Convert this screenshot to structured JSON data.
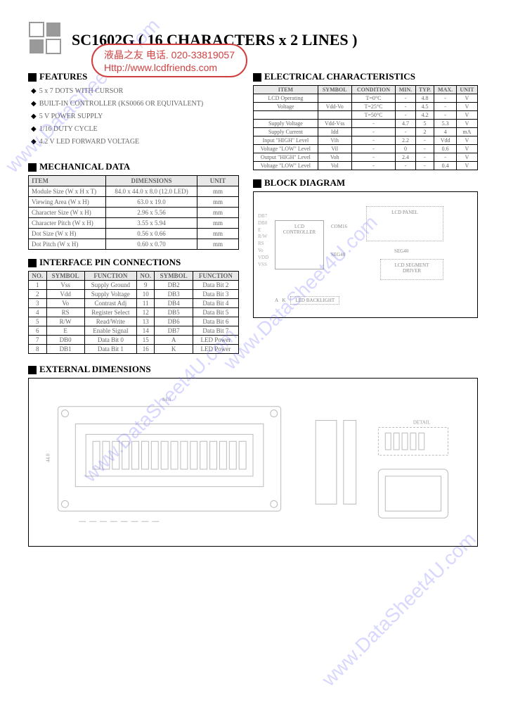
{
  "title": "SC1602G ( 16 CHARACTERS x 2 LINES )",
  "watermark_box": {
    "line1": "液晶之友   电话. 020-33819057",
    "line2": "Http://www.lcdfriends.com"
  },
  "watermark_diag": "www.DataSheet4U.com",
  "sections": {
    "features": "FEATURES",
    "electrical": "ELECTRICAL CHARACTERISTICS",
    "mechanical": "MECHANICAL DATA",
    "pins": "INTERFACE PIN CONNECTIONS",
    "block": "BLOCK DIAGRAM",
    "external": "EXTERNAL DIMENSIONS"
  },
  "features": [
    "5 x 7 DOTS WITH CURSOR",
    "BUILT-IN CONTROLLER (KS0066 OR EQUIVALENT)",
    "5 V POWER SUPPLY",
    "1/16 DUTY CYCLE",
    "4.2 V LED FORWARD VOLTAGE"
  ],
  "mechanical": {
    "headers": [
      "ITEM",
      "DIMENSIONS",
      "UNIT"
    ],
    "rows": [
      [
        "Module Size (W x H x T)",
        "84.0 x 44.0 x 8.0 (12.0 LED)",
        "mm"
      ],
      [
        "Viewing Area (W x H)",
        "63.0 x 19.0",
        "mm"
      ],
      [
        "Character Size (W x H)",
        "2.96 x 5.56",
        "mm"
      ],
      [
        "Character Pitch (W x H)",
        "3.55 x 5.94",
        "mm"
      ],
      [
        "Dot Size (W x H)",
        "0.56 x 0.66",
        "mm"
      ],
      [
        "Dot Pitch (W x H)",
        "0.60 x 0.70",
        "mm"
      ]
    ]
  },
  "pins": {
    "headers": [
      "NO.",
      "SYMBOL",
      "FUNCTION",
      "NO.",
      "SYMBOL",
      "FUNCTION"
    ],
    "rows": [
      [
        "1",
        "Vss",
        "Supply Ground",
        "9",
        "DB2",
        "Data Bit 2"
      ],
      [
        "2",
        "Vdd",
        "Supply Voltage",
        "10",
        "DB3",
        "Data Bit 3"
      ],
      [
        "3",
        "Vo",
        "Contrast Adj",
        "11",
        "DB4",
        "Data Bit 4"
      ],
      [
        "4",
        "RS",
        "Register Select",
        "12",
        "DB5",
        "Data Bit 5"
      ],
      [
        "5",
        "R/W",
        "Read/Write",
        "13",
        "DB6",
        "Data Bit 6"
      ],
      [
        "6",
        "E",
        "Enable Signal",
        "14",
        "DB7",
        "Data Bit 7"
      ],
      [
        "7",
        "DB0",
        "Data Bit 0",
        "15",
        "A",
        "LED Power"
      ],
      [
        "8",
        "DB1",
        "Data Bit 1",
        "16",
        "K",
        "LED Power"
      ]
    ]
  },
  "electrical": {
    "headers": [
      "ITEM",
      "SYMBOL",
      "CONDITION",
      "MIN.",
      "TYP.",
      "MAX.",
      "UNIT"
    ],
    "rows": [
      [
        "LCD Operating",
        "",
        "T=0°C",
        "-",
        "4.8",
        "-",
        "V"
      ],
      [
        "Voltage",
        "Vdd-Vo",
        "T=25°C",
        "-",
        "4.5",
        "-",
        "V"
      ],
      [
        "",
        "",
        "T=50°C",
        "-",
        "4.2",
        "-",
        "V"
      ],
      [
        "Supply Voltage",
        "Vdd-Vss",
        "-",
        "4.7",
        "5",
        "5.3",
        "V"
      ],
      [
        "Supply Current",
        "Idd",
        "-",
        "-",
        "2",
        "4",
        "mA"
      ],
      [
        "Input \"HIGH\" Level",
        "Vih",
        "-",
        "2.2",
        "-",
        "Vdd",
        "V"
      ],
      [
        "Voltage \"LOW\" Level",
        "Vil",
        "-",
        "0",
        "-",
        "0.6",
        "V"
      ],
      [
        "Output \"HIGH\" Level",
        "Voh",
        "-",
        "2.4",
        "-",
        "-",
        "V"
      ],
      [
        "Voltage \"LOW\" Level",
        "Vol",
        "-",
        "-",
        "-",
        "0.4",
        "V"
      ]
    ]
  },
  "block_diagram": {
    "labels": {
      "panel": "LCD PANEL",
      "com": "COM16",
      "controller": "LCD\nCONTROLLER",
      "seg1": "SEG40",
      "seg2": "SEG40",
      "driver": "LCD SEGMENT\nDRIVER",
      "backlight": "LED BACKLIGHT",
      "sig1": "DB7",
      "sig2": "DB0",
      "sig3": "E",
      "sig4": "R/W",
      "sig5": "RS",
      "sig6": "Vo",
      "sig7": "VDD",
      "sig8": "VSS",
      "sig9": "A",
      "sig10": "K"
    }
  },
  "colors": {
    "border": "#000000",
    "header_bg": "#e8e8e8",
    "text_faded": "#888888"
  }
}
